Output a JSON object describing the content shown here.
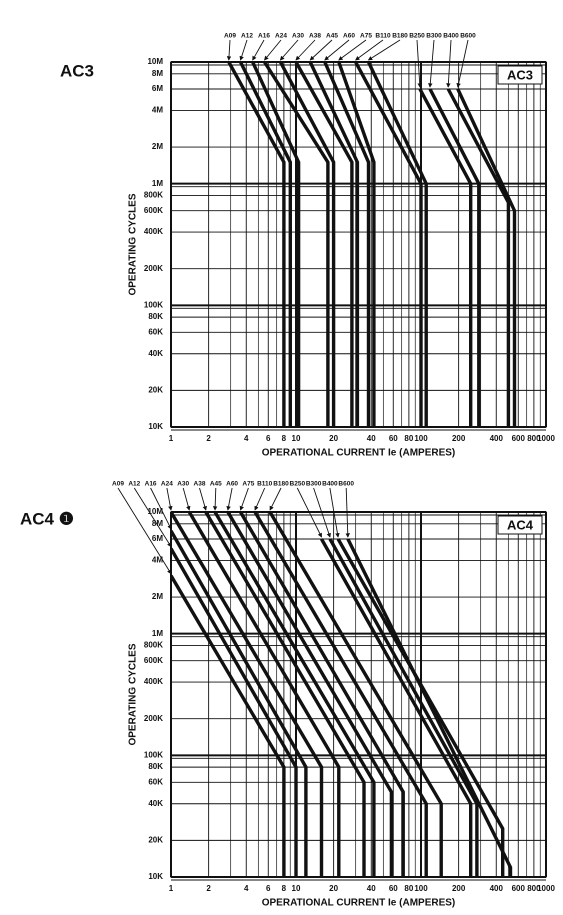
{
  "chart_data": [
    {
      "type": "line",
      "title": "AC3",
      "panel_label": "AC3",
      "x_label": "OPERATIONAL CURRENT Ie (AMPERES)",
      "y_label": "OPERATING CYCLES",
      "xscale": "log",
      "yscale": "log",
      "grid": true,
      "xlim": [
        1,
        1000
      ],
      "ylim": [
        10000,
        10000000
      ],
      "xticks": [
        1,
        2,
        4,
        6,
        8,
        10,
        20,
        40,
        60,
        80,
        100,
        200,
        400,
        600,
        800,
        1000
      ],
      "yticks": [
        {
          "value": 10000000,
          "label": "10M"
        },
        {
          "value": 8000000,
          "label": "8M"
        },
        {
          "value": 6000000,
          "label": "6M"
        },
        {
          "value": 4000000,
          "label": "4M"
        },
        {
          "value": 2000000,
          "label": "2M"
        },
        {
          "value": 1000000,
          "label": "1M"
        },
        {
          "value": 800000,
          "label": "800K"
        },
        {
          "value": 600000,
          "label": "600K"
        },
        {
          "value": 400000,
          "label": "400K"
        },
        {
          "value": 200000,
          "label": "200K"
        },
        {
          "value": 100000,
          "label": "100K"
        },
        {
          "value": 80000,
          "label": "80K"
        },
        {
          "value": 60000,
          "label": "60K"
        },
        {
          "value": 40000,
          "label": "40K"
        },
        {
          "value": 20000,
          "label": "20K"
        },
        {
          "value": 10000,
          "label": "10K"
        }
      ],
      "series": [
        {
          "name": "A09",
          "color": "#111111",
          "x": [
            2.9,
            8,
            8
          ],
          "values": [
            10000000,
            1500000,
            10000
          ]
        },
        {
          "name": "A12",
          "color": "#111111",
          "x": [
            3.6,
            9,
            9
          ],
          "values": [
            10000000,
            1500000,
            10000
          ]
        },
        {
          "name": "A16",
          "color": "#111111",
          "x": [
            4.5,
            10.5,
            10.5
          ],
          "values": [
            10000000,
            1500000,
            10000
          ]
        },
        {
          "name": "A24",
          "color": "#111111",
          "x": [
            5.6,
            18,
            18
          ],
          "values": [
            10000000,
            1500000,
            10000
          ]
        },
        {
          "name": "A30",
          "color": "#111111",
          "x": [
            7.5,
            20,
            20
          ],
          "values": [
            10000000,
            1500000,
            10000
          ]
        },
        {
          "name": "A38",
          "color": "#111111",
          "x": [
            10,
            28,
            28
          ],
          "values": [
            10000000,
            1500000,
            10000
          ]
        },
        {
          "name": "A45",
          "color": "#111111",
          "x": [
            13,
            31,
            31
          ],
          "values": [
            10000000,
            1500000,
            10000
          ]
        },
        {
          "name": "A60",
          "color": "#111111",
          "x": [
            17,
            38,
            38
          ],
          "values": [
            10000000,
            1500000,
            10000
          ]
        },
        {
          "name": "A75",
          "color": "#111111",
          "x": [
            22,
            42,
            42
          ],
          "values": [
            10000000,
            1500000,
            10000
          ]
        },
        {
          "name": "B110",
          "color": "#111111",
          "x": [
            30,
            100,
            100
          ],
          "values": [
            10000000,
            1000000,
            10000
          ]
        },
        {
          "name": "B180",
          "color": "#111111",
          "x": [
            38,
            110,
            110
          ],
          "values": [
            10000000,
            1000000,
            10000
          ]
        },
        {
          "name": "B250",
          "color": "#111111",
          "x": [
            98,
            250,
            250
          ],
          "values": [
            6000000,
            1000000,
            10000
          ]
        },
        {
          "name": "B300",
          "color": "#111111",
          "x": [
            118,
            290,
            290
          ],
          "values": [
            6000000,
            1000000,
            10000
          ]
        },
        {
          "name": "B400",
          "color": "#111111",
          "x": [
            165,
            500,
            500
          ],
          "values": [
            6000000,
            700000,
            10000
          ]
        },
        {
          "name": "B600",
          "color": "#111111",
          "x": [
            197,
            560,
            560
          ],
          "values": [
            6000000,
            600000,
            10000
          ]
        }
      ]
    },
    {
      "type": "line",
      "title": "AC4 ❶",
      "panel_label": "AC4",
      "x_label": "OPERATIONAL CURRENT Ie (AMPERES)",
      "y_label": "OPERATING CYCLES",
      "xscale": "log",
      "yscale": "log",
      "grid": true,
      "xlim": [
        1,
        1000
      ],
      "ylim": [
        10000,
        10000000
      ],
      "xticks": [
        1,
        2,
        4,
        6,
        8,
        10,
        20,
        40,
        60,
        80,
        100,
        200,
        400,
        600,
        800,
        1000
      ],
      "yticks": [
        {
          "value": 10000000,
          "label": "10M"
        },
        {
          "value": 8000000,
          "label": "8M"
        },
        {
          "value": 6000000,
          "label": "6M"
        },
        {
          "value": 4000000,
          "label": "4M"
        },
        {
          "value": 2000000,
          "label": "2M"
        },
        {
          "value": 1000000,
          "label": "1M"
        },
        {
          "value": 800000,
          "label": "800K"
        },
        {
          "value": 600000,
          "label": "600K"
        },
        {
          "value": 400000,
          "label": "400K"
        },
        {
          "value": 200000,
          "label": "200K"
        },
        {
          "value": 100000,
          "label": "100K"
        },
        {
          "value": 80000,
          "label": "80K"
        },
        {
          "value": 60000,
          "label": "60K"
        },
        {
          "value": 40000,
          "label": "40K"
        },
        {
          "value": 20000,
          "label": "20K"
        },
        {
          "value": 10000,
          "label": "10K"
        }
      ],
      "series": [
        {
          "name": "A09",
          "color": "#111111",
          "x": [
            1,
            8,
            8
          ],
          "values": [
            3000000,
            80000,
            10000
          ]
        },
        {
          "name": "A12",
          "color": "#111111",
          "x": [
            1,
            10,
            10
          ],
          "values": [
            5000000,
            80000,
            10000
          ]
        },
        {
          "name": "A16",
          "color": "#111111",
          "x": [
            1,
            12,
            12
          ],
          "values": [
            7000000,
            80000,
            10000
          ]
        },
        {
          "name": "A24",
          "color": "#111111",
          "x": [
            1,
            16,
            16
          ],
          "values": [
            10000000,
            80000,
            10000
          ]
        },
        {
          "name": "A30",
          "color": "#111111",
          "x": [
            1.4,
            22,
            22
          ],
          "values": [
            10000000,
            80000,
            10000
          ]
        },
        {
          "name": "A38",
          "color": "#111111",
          "x": [
            1.9,
            35,
            35
          ],
          "values": [
            10000000,
            60000,
            10000
          ]
        },
        {
          "name": "A45",
          "color": "#111111",
          "x": [
            2.25,
            42,
            42
          ],
          "values": [
            10000000,
            60000,
            10000
          ]
        },
        {
          "name": "A60",
          "color": "#111111",
          "x": [
            2.85,
            58,
            58
          ],
          "values": [
            10000000,
            50000,
            10000
          ]
        },
        {
          "name": "A75",
          "color": "#111111",
          "x": [
            3.6,
            72,
            72
          ],
          "values": [
            10000000,
            50000,
            10000
          ]
        },
        {
          "name": "B110",
          "color": "#111111",
          "x": [
            4.7,
            110,
            110
          ],
          "values": [
            10000000,
            40000,
            10000
          ]
        },
        {
          "name": "B180",
          "color": "#111111",
          "x": [
            6.2,
            145,
            145
          ],
          "values": [
            10000000,
            40000,
            10000
          ]
        },
        {
          "name": "B250",
          "color": "#111111",
          "x": [
            16,
            250,
            250
          ],
          "values": [
            6000000,
            40000,
            10000
          ]
        },
        {
          "name": "B300",
          "color": "#111111",
          "x": [
            18.7,
            280,
            280
          ],
          "values": [
            6000000,
            40000,
            10000
          ]
        },
        {
          "name": "B400",
          "color": "#111111",
          "x": [
            21.7,
            450,
            450
          ],
          "values": [
            6000000,
            25000,
            10000
          ]
        },
        {
          "name": "B600",
          "color": "#111111",
          "x": [
            26,
            520,
            520
          ],
          "values": [
            6000000,
            12000,
            10000
          ]
        }
      ]
    }
  ]
}
